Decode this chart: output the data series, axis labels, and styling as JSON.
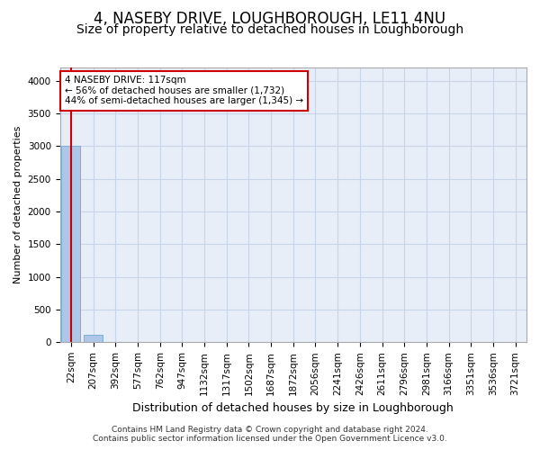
{
  "title": "4, NASEBY DRIVE, LOUGHBOROUGH, LE11 4NU",
  "subtitle": "Size of property relative to detached houses in Loughborough",
  "xlabel": "Distribution of detached houses by size in Loughborough",
  "ylabel": "Number of detached properties",
  "bar_labels": [
    "22sqm",
    "207sqm",
    "392sqm",
    "577sqm",
    "762sqm",
    "947sqm",
    "1132sqm",
    "1317sqm",
    "1502sqm",
    "1687sqm",
    "1872sqm",
    "2056sqm",
    "2241sqm",
    "2426sqm",
    "2611sqm",
    "2796sqm",
    "2981sqm",
    "3166sqm",
    "3351sqm",
    "3536sqm",
    "3721sqm"
  ],
  "bar_values": [
    3000,
    110,
    2,
    1,
    1,
    0,
    0,
    0,
    0,
    0,
    0,
    0,
    0,
    0,
    0,
    0,
    0,
    0,
    0,
    0,
    0
  ],
  "bar_color": "#aec6e8",
  "bar_edge_color": "#7aafd4",
  "ylim": [
    0,
    4200
  ],
  "yticks": [
    0,
    500,
    1000,
    1500,
    2000,
    2500,
    3000,
    3500,
    4000
  ],
  "property_size_sqm": 117,
  "annotation_title": "4 NASEBY DRIVE: 117sqm",
  "annotation_line1": "← 56% of detached houses are smaller (1,732)",
  "annotation_line2": "44% of semi-detached houses are larger (1,345) →",
  "annotation_box_color": "#ffffff",
  "annotation_border_color": "#cc0000",
  "footer_line1": "Contains HM Land Registry data © Crown copyright and database right 2024.",
  "footer_line2": "Contains public sector information licensed under the Open Government Licence v3.0.",
  "background_color": "#ffffff",
  "plot_bg_color": "#e8eef8",
  "grid_color": "#c8d4e8",
  "title_fontsize": 12,
  "subtitle_fontsize": 10,
  "ylabel_fontsize": 8,
  "xlabel_fontsize": 9,
  "tick_fontsize": 7.5,
  "annot_fontsize": 7.5,
  "footer_fontsize": 6.5
}
